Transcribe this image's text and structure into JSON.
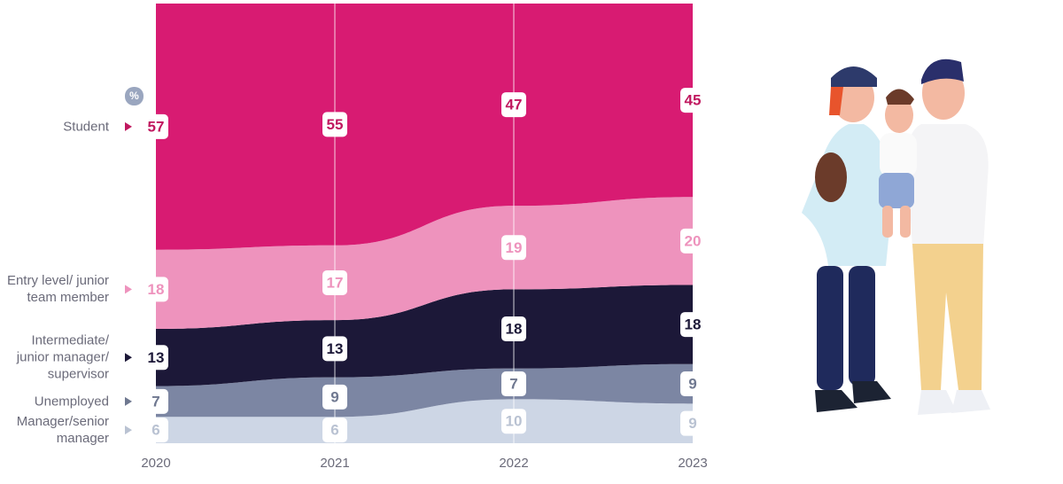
{
  "chart_data": {
    "type": "stacked-area",
    "unit": "%",
    "categories": [
      "2020",
      "2021",
      "2022",
      "2023"
    ],
    "ylim": [
      0,
      100
    ],
    "series": [
      {
        "name": "Manager/senior manager",
        "color": "#cdd6e5",
        "label_color": "#b9c2d2",
        "values": [
          6,
          6,
          10,
          9
        ]
      },
      {
        "name": "Unemployed",
        "color": "#7c86a3",
        "label_color": "#6f7890",
        "values": [
          7,
          9,
          7,
          9
        ]
      },
      {
        "name": "Intermediate/ junior manager/ supervisor",
        "color": "#1c1838",
        "label_color": "#1c1838",
        "values": [
          13,
          13,
          18,
          18
        ]
      },
      {
        "name": "Entry level/ junior team member",
        "color": "#ee93bd",
        "label_color": "#ee93bd",
        "values": [
          18,
          17,
          19,
          20
        ]
      },
      {
        "name": "Student",
        "color": "#d81b72",
        "label_color": "#c0185f",
        "values": [
          57,
          55,
          47,
          45
        ]
      }
    ]
  }
}
